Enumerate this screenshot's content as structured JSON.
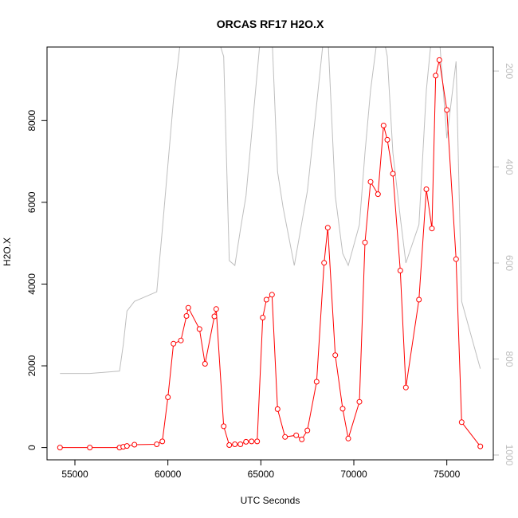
{
  "chart_data": {
    "type": "line",
    "title": "ORCAS RF17 H2O.X",
    "xlabel": "UTC Seconds",
    "ylabel": "H2O.X",
    "xlim": [
      53500,
      77500
    ],
    "ylim": [
      -300,
      9800
    ],
    "x_ticks": [
      55000,
      60000,
      65000,
      70000,
      75000
    ],
    "y_ticks": [
      0,
      2000,
      4000,
      6000,
      8000
    ],
    "y2lim": [
      1010,
      150
    ],
    "y2_ticks": [
      200,
      400,
      600,
      800,
      1000
    ],
    "grid": false,
    "series": [
      {
        "role": "primary",
        "color": "#ff0000",
        "marker": "open-circle",
        "x": [
          54200,
          55800,
          57400,
          57600,
          57800,
          58200,
          59400,
          59700,
          60000,
          60300,
          60700,
          61000,
          61100,
          61700,
          62000,
          62500,
          62600,
          63000,
          63300,
          63600,
          63900,
          64200,
          64500,
          64800,
          65100,
          65300,
          65600,
          65900,
          66300,
          66900,
          67200,
          67500,
          68000,
          68400,
          68600,
          69000,
          69400,
          69700,
          70300,
          70600,
          70900,
          71300,
          71600,
          71800,
          72100,
          72500,
          72800,
          73500,
          73900,
          74200,
          74400,
          74600,
          75000,
          75500,
          75800,
          76800
        ],
        "y": [
          0,
          0,
          0,
          20,
          40,
          70,
          80,
          150,
          1230,
          2540,
          2620,
          3220,
          3420,
          2900,
          2050,
          3210,
          3390,
          520,
          60,
          80,
          80,
          140,
          150,
          150,
          3180,
          3620,
          3740,
          940,
          260,
          300,
          200,
          420,
          1610,
          4520,
          5380,
          2260,
          950,
          220,
          1120,
          5020,
          6500,
          6200,
          7880,
          7530,
          6700,
          4330,
          1470,
          3620,
          6320,
          5360,
          9100,
          9480,
          8260,
          4610,
          620,
          30
        ]
      },
      {
        "role": "secondary",
        "color": "#bebebe",
        "marker": "none",
        "x": [
          54200,
          55800,
          57400,
          57600,
          57800,
          58200,
          59400,
          59700,
          60300,
          60700,
          61000,
          61700,
          62000,
          62600,
          63000,
          63300,
          63600,
          63900,
          64200,
          65000,
          65600,
          65900,
          66200,
          66800,
          67500,
          68000,
          68400,
          68600,
          69000,
          69400,
          69700,
          70300,
          70600,
          70900,
          71300,
          71600,
          71800,
          72100,
          72500,
          72800,
          73500,
          73900,
          74200,
          74400,
          74600,
          75000,
          75500,
          75800,
          76800
        ],
        "y": [
          830,
          830,
          825,
          770,
          700,
          680,
          660,
          530,
          260,
          130,
          120,
          140,
          135,
          120,
          170,
          595,
          605,
          530,
          460,
          120,
          125,
          410,
          485,
          605,
          450,
          270,
          120,
          120,
          460,
          580,
          605,
          520,
          370,
          240,
          120,
          130,
          170,
          370,
          505,
          600,
          520,
          240,
          120,
          115,
          130,
          340,
          180,
          680,
          820
        ]
      }
    ]
  }
}
